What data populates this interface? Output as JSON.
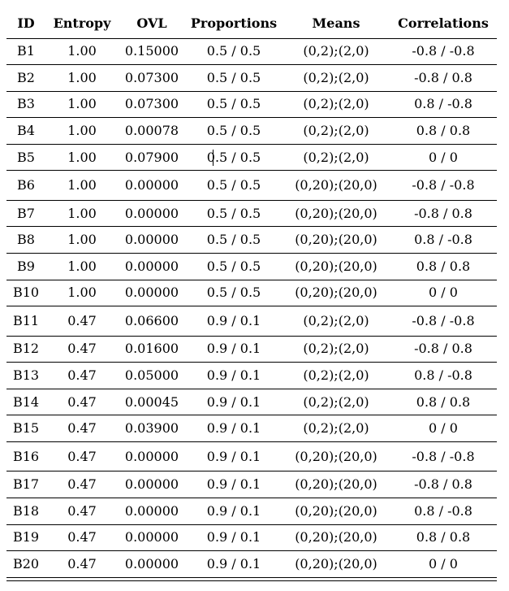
{
  "table": {
    "headers": [
      "ID",
      "Entropy",
      "OVL",
      "Proportions",
      "Means",
      "Correlations"
    ],
    "rows": [
      [
        "B1",
        "1.00",
        "0.15000",
        "0.5 / 0.5",
        "(0,2);(2,0)",
        "-0.8 / -0.8"
      ],
      [
        "B2",
        "1.00",
        "0.07300",
        "0.5 / 0.5",
        "(0,2);(2,0)",
        "-0.8 / 0.8"
      ],
      [
        "B3",
        "1.00",
        "0.07300",
        "0.5 / 0.5",
        "(0,2);(2,0)",
        "0.8 / -0.8"
      ],
      [
        "B4",
        "1.00",
        "0.00078",
        "0.5 / 0.5",
        "(0,2);(2,0)",
        "0.8 / 0.8"
      ],
      [
        "B5",
        "1.00",
        "0.07900",
        "0.5 / 0.5",
        "(0,2);(2,0)",
        "0 / 0"
      ],
      [
        "B6",
        "1.00",
        "0.00000",
        "0.5 / 0.5",
        "(0,20);(20,0)",
        "-0.8 / -0.8"
      ],
      [
        "B7",
        "1.00",
        "0.00000",
        "0.5 / 0.5",
        "(0,20);(20,0)",
        "-0.8 / 0.8"
      ],
      [
        "B8",
        "1.00",
        "0.00000",
        "0.5 / 0.5",
        "(0,20);(20,0)",
        "0.8 / -0.8"
      ],
      [
        "B9",
        "1.00",
        "0.00000",
        "0.5 / 0.5",
        "(0,20);(20,0)",
        "0.8 / 0.8"
      ],
      [
        "B10",
        "1.00",
        "0.00000",
        "0.5 / 0.5",
        "(0,20);(20,0)",
        "0 / 0"
      ],
      [
        "B11",
        "0.47",
        "0.06600",
        "0.9 / 0.1",
        "(0,2);(2,0)",
        "-0.8 / -0.8"
      ],
      [
        "B12",
        "0.47",
        "0.01600",
        "0.9 / 0.1",
        "(0,2);(2,0)",
        "-0.8 / 0.8"
      ],
      [
        "B13",
        "0.47",
        "0.05000",
        "0.9 / 0.1",
        "(0,2);(2,0)",
        "0.8 / -0.8"
      ],
      [
        "B14",
        "0.47",
        "0.00045",
        "0.9 / 0.1",
        "(0,2);(2,0)",
        "0.8 / 0.8"
      ],
      [
        "B15",
        "0.47",
        "0.03900",
        "0.9 / 0.1",
        "(0,2);(2,0)",
        "0 / 0"
      ],
      [
        "B16",
        "0.47",
        "0.00000",
        "0.9 / 0.1",
        "(0,20);(20,0)",
        "-0.8 / -0.8"
      ],
      [
        "B17",
        "0.47",
        "0.00000",
        "0.9 / 0.1",
        "(0,20);(20,0)",
        "-0.8 / 0.8"
      ],
      [
        "B18",
        "0.47",
        "0.00000",
        "0.9 / 0.1",
        "(0,20);(20,0)",
        "0.8 / -0.8"
      ],
      [
        "B19",
        "0.47",
        "0.00000",
        "0.9 / 0.1",
        "(0,20);(20,0)",
        "0.8 / 0.8"
      ],
      [
        "B20",
        "0.47",
        "0.00000",
        "0.9 / 0.1",
        "(0,20);(20,0)",
        "0 / 0"
      ]
    ]
  }
}
